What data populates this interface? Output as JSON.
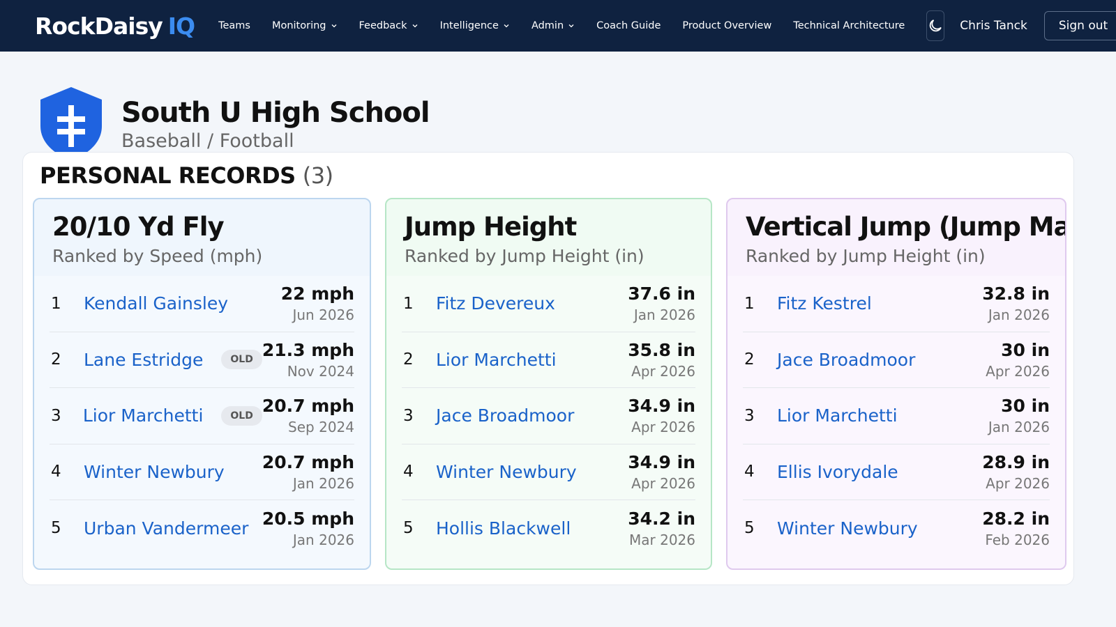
{
  "nav": {
    "brand": "RockDaisy",
    "brand_suffix": "IQ",
    "items": [
      {
        "label": "Teams",
        "dropdown": false
      },
      {
        "label": "Monitoring",
        "dropdown": true
      },
      {
        "label": "Feedback",
        "dropdown": true
      },
      {
        "label": "Intelligence",
        "dropdown": true
      },
      {
        "label": "Admin",
        "dropdown": true
      },
      {
        "label": "Coach Guide",
        "dropdown": false
      },
      {
        "label": "Product Overview",
        "dropdown": false
      },
      {
        "label": "Technical Architecture",
        "dropdown": false
      }
    ],
    "user": "Chris Tanck",
    "sign_out": "Sign out"
  },
  "header": {
    "title": "South U High School",
    "subtitle": "Baseball / Football"
  },
  "section": {
    "title": "PERSONAL RECORDS",
    "count": "(3)"
  },
  "cards": [
    {
      "title": "20/10 Yd Fly",
      "subtitle": "Ranked by Speed (mph)",
      "rows": [
        {
          "rank": "1",
          "name": "Kendall Gainsley",
          "value": "22 mph",
          "date": "Jun 2026"
        },
        {
          "rank": "2",
          "name": "Lane Estridge",
          "badge": "OLD",
          "value": "21.3 mph",
          "date": "Nov 2024"
        },
        {
          "rank": "3",
          "name": "Lior Marchetti",
          "badge": "OLD",
          "value": "20.7 mph",
          "date": "Sep 2024"
        },
        {
          "rank": "4",
          "name": "Winter Newbury",
          "value": "20.7 mph",
          "date": "Jan 2026"
        },
        {
          "rank": "5",
          "name": "Urban Vandermeer",
          "value": "20.5 mph",
          "date": "Jan 2026"
        }
      ]
    },
    {
      "title": "Jump Height",
      "subtitle": "Ranked by Jump Height (in)",
      "rows": [
        {
          "rank": "1",
          "name": "Fitz Devereux",
          "value": "37.6 in",
          "date": "Jan 2026"
        },
        {
          "rank": "2",
          "name": "Lior Marchetti",
          "value": "35.8 in",
          "date": "Apr 2026"
        },
        {
          "rank": "3",
          "name": "Jace Broadmoor",
          "value": "34.9 in",
          "date": "Apr 2026"
        },
        {
          "rank": "4",
          "name": "Winter Newbury",
          "value": "34.9 in",
          "date": "Apr 2026"
        },
        {
          "rank": "5",
          "name": "Hollis Blackwell",
          "value": "34.2 in",
          "date": "Mar 2026"
        }
      ]
    },
    {
      "title": "Vertical Jump (Jump Mat)",
      "subtitle": "Ranked by Jump Height (in)",
      "rows": [
        {
          "rank": "1",
          "name": "Fitz Kestrel",
          "value": "32.8 in",
          "date": "Jan 2026"
        },
        {
          "rank": "2",
          "name": "Jace Broadmoor",
          "value": "30 in",
          "date": "Apr 2026"
        },
        {
          "rank": "3",
          "name": "Lior Marchetti",
          "value": "30 in",
          "date": "Jan 2026"
        },
        {
          "rank": "4",
          "name": "Ellis Ivorydale",
          "value": "28.9 in",
          "date": "Apr 2026"
        },
        {
          "rank": "5",
          "name": "Winter Newbury",
          "value": "28.2 in",
          "date": "Feb 2026"
        }
      ]
    }
  ]
}
